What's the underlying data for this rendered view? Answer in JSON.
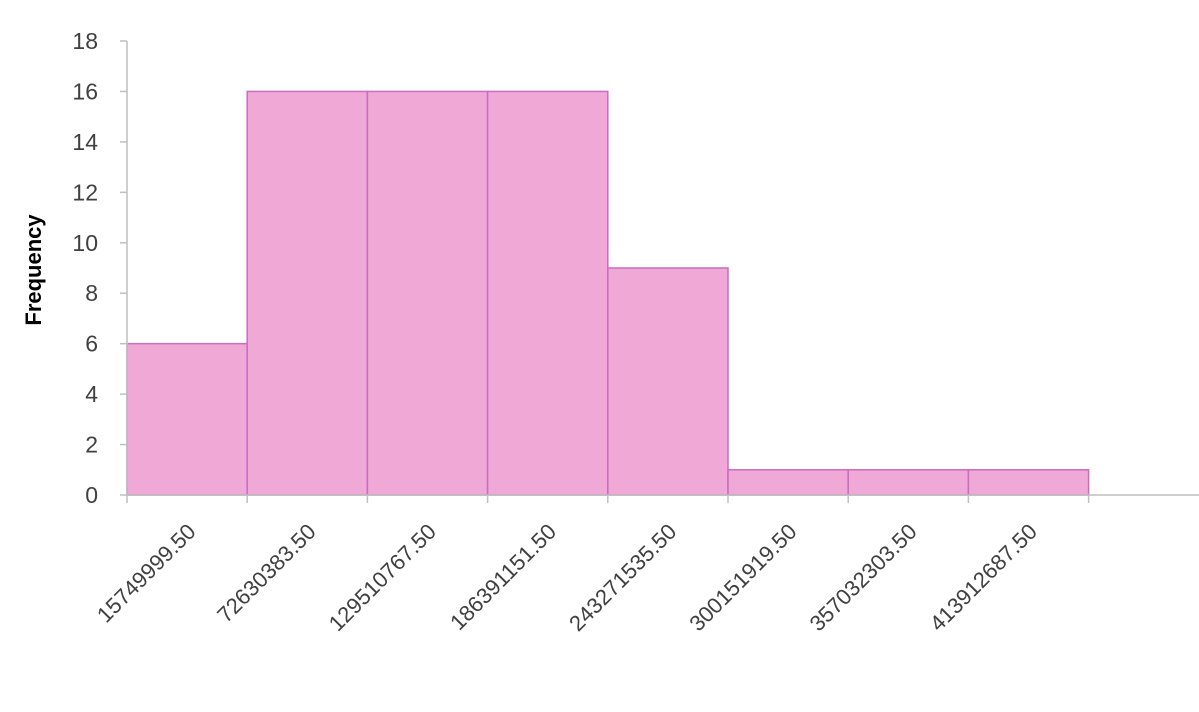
{
  "chart_data": {
    "type": "bar",
    "subtype": "histogram",
    "categories": [
      "15749999.50",
      "72630383.50",
      "129510767.50",
      "186391151.50",
      "243271535.50",
      "300151919.50",
      "357032303.50",
      "413912687.50"
    ],
    "series": [
      {
        "values": [
          6,
          16,
          16,
          16,
          9,
          1,
          1,
          1
        ]
      }
    ],
    "ylabel": "Frequency",
    "xlabel": "",
    "title": "",
    "ylim": [
      0,
      18
    ],
    "yticks": [
      0,
      2,
      4,
      6,
      8,
      10,
      12,
      14,
      16,
      18
    ],
    "bar_color": "#f0a8d6",
    "bar_edge_color": "#c96cc2",
    "grid": false,
    "legend": "none",
    "x_tick_label_rotation": "45 degrees, anchored at end"
  }
}
